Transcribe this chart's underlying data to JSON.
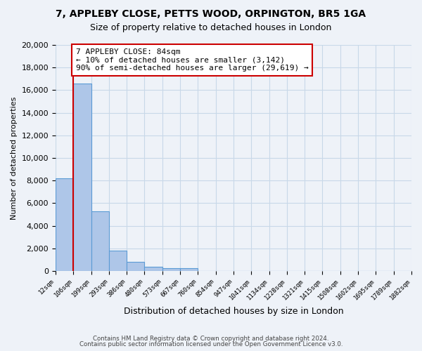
{
  "title": "7, APPLEBY CLOSE, PETTS WOOD, ORPINGTON, BR5 1GA",
  "subtitle": "Size of property relative to detached houses in London",
  "xlabel": "Distribution of detached houses by size in London",
  "ylabel": "Number of detached properties",
  "bar_values": [
    8200,
    16600,
    5300,
    1800,
    800,
    350,
    270,
    220,
    0,
    0,
    0,
    0,
    0,
    0,
    0,
    0,
    0,
    0,
    0,
    0
  ],
  "bin_labels": [
    "12sqm",
    "106sqm",
    "199sqm",
    "293sqm",
    "386sqm",
    "480sqm",
    "573sqm",
    "667sqm",
    "760sqm",
    "854sqm",
    "947sqm",
    "1041sqm",
    "1134sqm",
    "1228sqm",
    "1321sqm",
    "1415sqm",
    "1508sqm",
    "1602sqm",
    "1695sqm",
    "1789sqm",
    "1882sqm"
  ],
  "bar_color": "#aec6e8",
  "bar_edgecolor": "#5b9bd5",
  "bar_linewidth": 0.8,
  "red_line_x": 1,
  "annotation_title": "7 APPLEBY CLOSE: 84sqm",
  "annotation_line1": "← 10% of detached houses are smaller (3,142)",
  "annotation_line2": "90% of semi-detached houses are larger (29,619) →",
  "annotation_box_color": "#ffffff",
  "annotation_border_color": "#cc0000",
  "ylim": [
    0,
    20000
  ],
  "yticks": [
    0,
    2000,
    4000,
    6000,
    8000,
    10000,
    12000,
    14000,
    16000,
    18000,
    20000
  ],
  "grid_color": "#c8d8e8",
  "background_color": "#eef2f8",
  "footer1": "Contains HM Land Registry data © Crown copyright and database right 2024.",
  "footer2": "Contains public sector information licensed under the Open Government Licence v3.0."
}
